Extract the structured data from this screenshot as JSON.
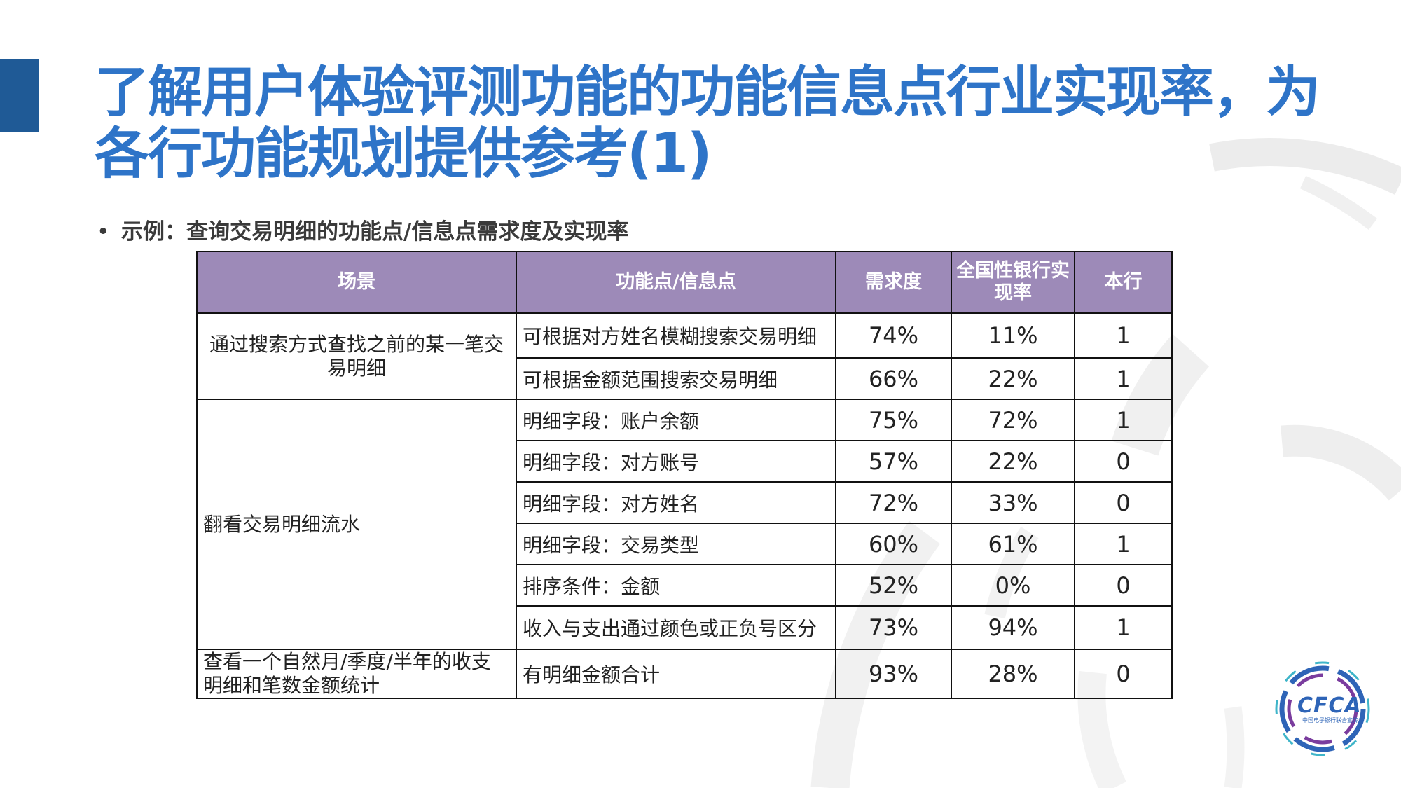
{
  "title": "了解用户体验评测功能的功能信息点行业实现率，为各行功能规划提供参考(1)",
  "bullet": "示例：查询交易明细的功能点/信息点需求度及实现率",
  "table": {
    "headers": [
      "场景",
      "功能点/信息点",
      "需求度",
      "全国性银行实现率",
      "本行"
    ],
    "scenes": [
      "通过搜索方式查找之前的某一笔交易明细",
      "翻看交易明细流水",
      "查看一个自然月/季度/半年的收支明细和笔数金额统计"
    ],
    "rows": [
      {
        "feature": "可根据对方姓名模糊搜索交易明细",
        "demand": "74%",
        "rate": "11%",
        "own": "1"
      },
      {
        "feature": "可根据金额范围搜索交易明细",
        "demand": "66%",
        "rate": "22%",
        "own": "1"
      },
      {
        "feature": "明细字段：账户余额",
        "demand": "75%",
        "rate": "72%",
        "own": "1"
      },
      {
        "feature": "明细字段：对方账号",
        "demand": "57%",
        "rate": "22%",
        "own": "0"
      },
      {
        "feature": "明细字段：对方姓名",
        "demand": "72%",
        "rate": "33%",
        "own": "0"
      },
      {
        "feature": "明细字段：交易类型",
        "demand": "60%",
        "rate": "61%",
        "own": "1"
      },
      {
        "feature": "排序条件：金额",
        "demand": "52%",
        "rate": "0%",
        "own": "0"
      },
      {
        "feature": "收入与支出通过颜色或正负号区分",
        "demand": "73%",
        "rate": "94%",
        "own": "1"
      },
      {
        "feature": "有明细金额合计",
        "demand": "93%",
        "rate": "28%",
        "own": "0"
      }
    ]
  },
  "logo": {
    "text": "CFCA",
    "subtitle": "中国电子银行联合宣传年"
  },
  "colors": {
    "title": "#2e74c8",
    "accent_bar": "#1f5a96",
    "header_bg": "#9d8ab8"
  }
}
